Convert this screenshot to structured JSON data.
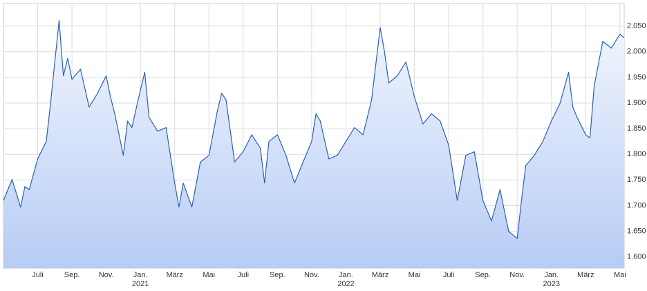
{
  "chart_data": {
    "type": "area",
    "x": [
      0,
      0.5,
      1,
      1.25,
      1.5,
      2,
      2.5,
      2.75,
      3,
      3.25,
      3.5,
      3.75,
      4,
      4.5,
      5,
      5.5,
      6,
      6.25,
      6.5,
      7,
      7.25,
      7.5,
      8,
      8.25,
      8.5,
      9,
      9.5,
      10,
      10.25,
      10.5,
      11,
      11.5,
      12,
      12.5,
      12.75,
      13,
      13.5,
      14,
      14.5,
      15,
      15.25,
      15.5,
      16,
      16.5,
      17,
      17.5,
      18,
      18.25,
      18.5,
      19,
      19.5,
      20,
      20.5,
      21,
      21.5,
      22,
      22.25,
      22.5,
      23,
      23.5,
      24,
      24.5,
      25,
      25.5,
      26,
      26.5,
      27,
      27.5,
      28,
      28.5,
      29,
      29.5,
      30,
      30.25,
      30.5,
      31,
      31.5,
      32,
      32.5,
      33,
      33.25,
      33.5,
      34,
      34.25,
      34.5,
      35,
      35.5,
      36,
      36.25
    ],
    "series": [
      {
        "color": "#2b5fb4",
        "values": [
          1710,
          1751,
          1697,
          1737,
          1731,
          1791,
          1825,
          1899,
          1980,
          2061,
          1953,
          1987,
          1946,
          1966,
          1892,
          1919,
          1953,
          1912,
          1879,
          1798,
          1865,
          1852,
          1926,
          1960,
          1872,
          1845,
          1852,
          1744,
          1697,
          1744,
          1697,
          1785,
          1798,
          1886,
          1919,
          1906,
          1785,
          1805,
          1838,
          1812,
          1744,
          1825,
          1838,
          1798,
          1744,
          1785,
          1825,
          1879,
          1865,
          1791,
          1798,
          1825,
          1852,
          1838,
          1906,
          2047,
          2000,
          1939,
          1953,
          1980,
          1912,
          1859,
          1879,
          1865,
          1818,
          1710,
          1798,
          1805,
          1710,
          1670,
          1731,
          1650,
          1636,
          1710,
          1778,
          1798,
          1825,
          1865,
          1899,
          1960,
          1892,
          1872,
          1838,
          1832,
          1933,
          2020,
          2007,
          2034,
          2027
        ]
      }
    ],
    "xlim": [
      0,
      36.25
    ],
    "xticks": [
      {
        "value": 2,
        "label": "Juli"
      },
      {
        "value": 4,
        "label": "Sep."
      },
      {
        "value": 6,
        "label": "Nov."
      },
      {
        "value": 8,
        "label": "Jan. 2021"
      },
      {
        "value": 10,
        "label": "März"
      },
      {
        "value": 12,
        "label": "Mai"
      },
      {
        "value": 14,
        "label": "Juli"
      },
      {
        "value": 16,
        "label": "Sep."
      },
      {
        "value": 18,
        "label": "Nov."
      },
      {
        "value": 20,
        "label": "Jan. 2022"
      },
      {
        "value": 22,
        "label": "März"
      },
      {
        "value": 24,
        "label": "Mai"
      },
      {
        "value": 26,
        "label": "Juli"
      },
      {
        "value": 28,
        "label": "Sep."
      },
      {
        "value": 30,
        "label": "Nov."
      },
      {
        "value": 32,
        "label": "Jan. 2023"
      },
      {
        "value": 34,
        "label": "März"
      },
      {
        "value": 36,
        "label": "Mai"
      }
    ],
    "ylim": [
      1578,
      2094
    ],
    "yticks": [
      {
        "value": 1600,
        "label": "1.600"
      },
      {
        "value": 1650,
        "label": "1.650"
      },
      {
        "value": 1700,
        "label": "1.700"
      },
      {
        "value": 1750,
        "label": "1.750"
      },
      {
        "value": 1800,
        "label": "1.800"
      },
      {
        "value": 1850,
        "label": "1.850"
      },
      {
        "value": 1900,
        "label": "1.900"
      },
      {
        "value": 1950,
        "label": "1.950"
      },
      {
        "value": 2000,
        "label": "2.000"
      },
      {
        "value": 2050,
        "label": "2.050"
      }
    ],
    "grid": true
  }
}
